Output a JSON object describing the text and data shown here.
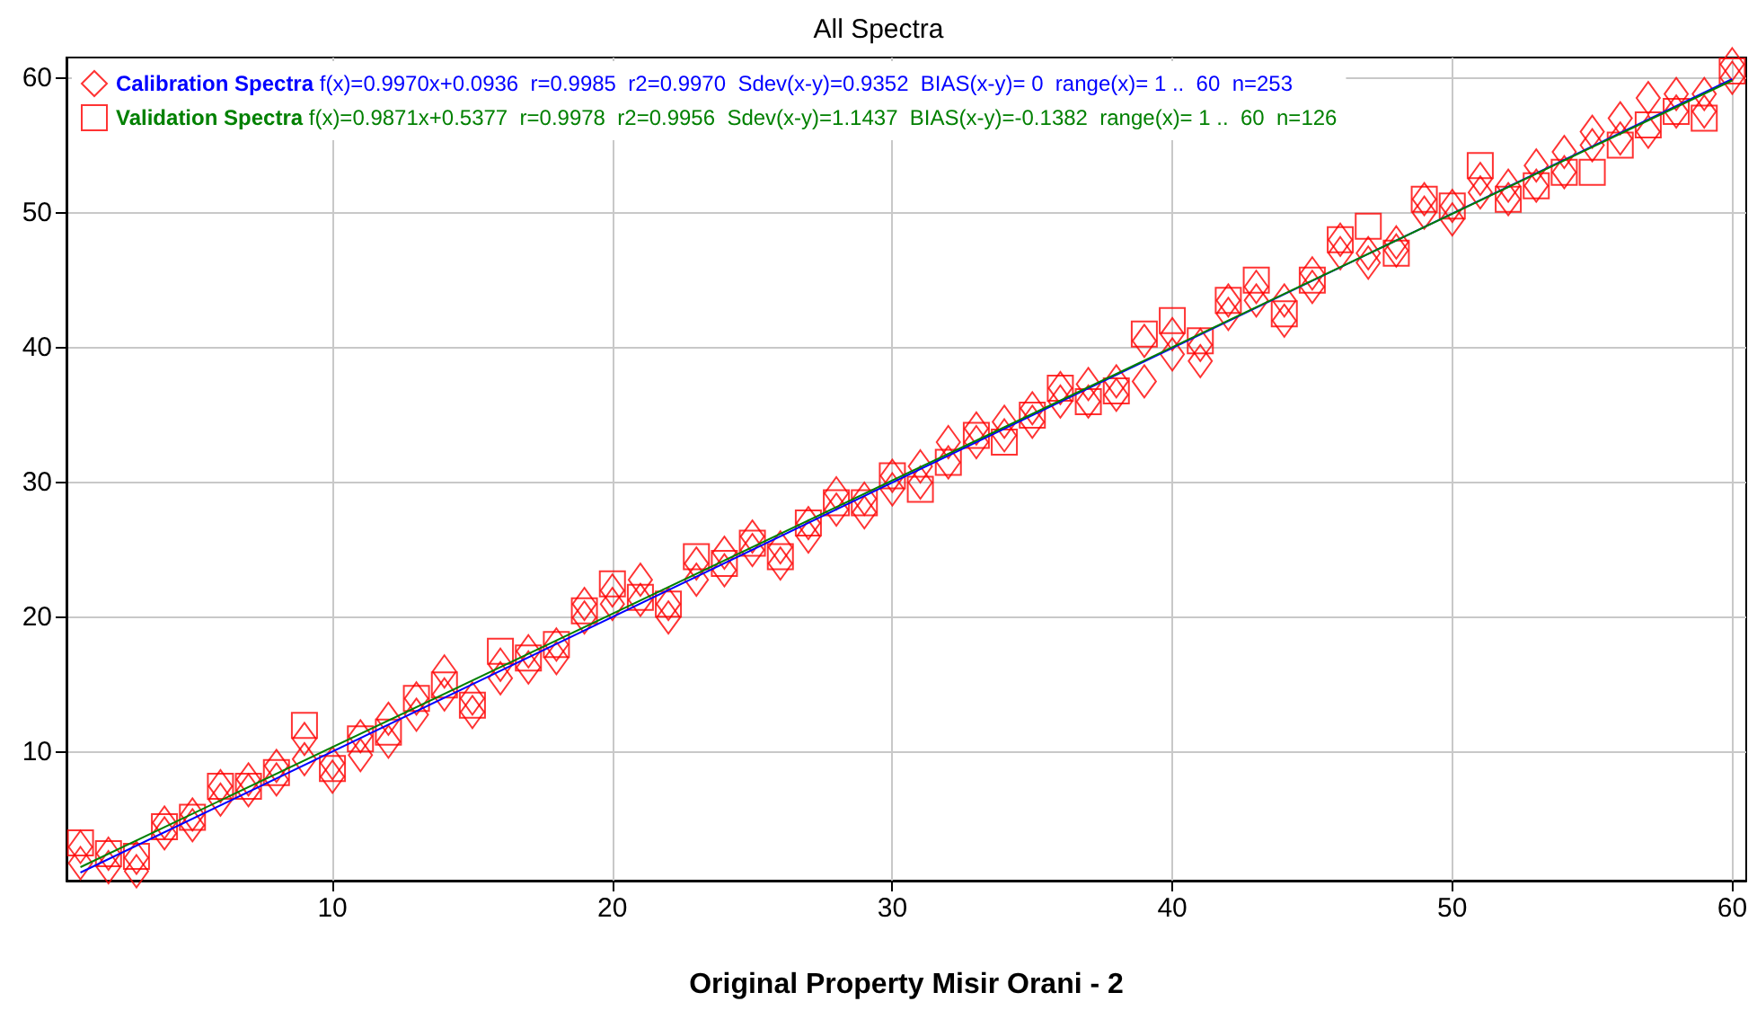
{
  "chart_data": {
    "type": "scatter",
    "title": "All Spectra",
    "xlabel": "Original Property Misir Orani - 2",
    "annotations": [
      "f(x)=0.9970x+0.0936  r=0.9985  r2=0.9970  Sdev(x-y)=0.9352  BIAS(x-y)= 0  range(x)= 1 ..  60  n=253",
      "f(x)=0.9871x+0.5377  r=0.9978  r2=0.9956  Sdev(x-y)=1.1437  BIAS(x-y)=-0.1382  range(x)= 1 ..  60  n=126"
    ],
    "xlim": [
      0.5,
      60.5
    ],
    "ylim": [
      0.5,
      61.5
    ],
    "xticks": [
      10,
      20,
      30,
      40,
      50,
      60
    ],
    "yticks": [
      10,
      20,
      30,
      40,
      50,
      60
    ],
    "grid": true,
    "legend": "top left",
    "series": [
      {
        "name": "Calibration Spectra",
        "marker": "diamond",
        "color": "#ff0000",
        "x": [
          1,
          2,
          3,
          4,
          5,
          6,
          7,
          8,
          9,
          10,
          11,
          12,
          13,
          14,
          15,
          16,
          17,
          18,
          19,
          20,
          21,
          22,
          23,
          24,
          25,
          26,
          27,
          28,
          29,
          30,
          31,
          32,
          33,
          34,
          35,
          36,
          37,
          38,
          39,
          40,
          41,
          42,
          43,
          44,
          45,
          46,
          47,
          48,
          49,
          50,
          51,
          52,
          53,
          54,
          55,
          56,
          57,
          58,
          59,
          60,
          1,
          2,
          3,
          4,
          5,
          6,
          7,
          8,
          9,
          10,
          11,
          12,
          13,
          14,
          15,
          16,
          17,
          18,
          19,
          20,
          21,
          22,
          23,
          24,
          25,
          26,
          27,
          28,
          29,
          30,
          31,
          32,
          33,
          34,
          35,
          36,
          37,
          38,
          39,
          40,
          41,
          42,
          43,
          44,
          45,
          46,
          47,
          48,
          49,
          50,
          51,
          52,
          53,
          54,
          55,
          56,
          57,
          58,
          59,
          60
        ],
        "values": [
          1.8,
          1.5,
          1.2,
          4.0,
          4.6,
          6.5,
          7.2,
          8.0,
          9.5,
          8.2,
          9.8,
          10.8,
          12.8,
          14.3,
          13.0,
          15.5,
          16.3,
          17.0,
          20.0,
          21.0,
          21.3,
          20.0,
          22.8,
          23.5,
          25.0,
          24.0,
          26.0,
          28.0,
          27.8,
          29.5,
          30.0,
          31.5,
          33.0,
          33.5,
          34.5,
          36.0,
          36.0,
          36.5,
          37.5,
          39.5,
          39.0,
          42.5,
          43.5,
          42.0,
          44.5,
          47.0,
          46.3,
          47.2,
          50.0,
          49.5,
          51.5,
          51.0,
          52.0,
          53.0,
          55.0,
          55.5,
          56.0,
          57.5,
          57.5,
          60.0,
          3.0,
          2.5,
          2.2,
          4.8,
          5.4,
          7.5,
          8.0,
          9.0,
          11.0,
          9.2,
          11.2,
          12.5,
          14.0,
          16.0,
          14.0,
          16.5,
          17.5,
          18.0,
          21.0,
          22.0,
          22.8,
          21.0,
          24.0,
          24.8,
          26.0,
          25.2,
          27.0,
          29.2,
          28.8,
          30.5,
          31.2,
          33.0,
          34.0,
          34.5,
          35.5,
          37.0,
          37.3,
          37.5,
          40.5,
          41.0,
          40.2,
          43.5,
          44.5,
          43.5,
          45.5,
          48.0,
          47.0,
          47.8,
          51.0,
          50.5,
          52.5,
          52.0,
          53.5,
          54.5,
          56.0,
          57.0,
          58.5,
          58.8,
          58.8,
          61.0
        ]
      },
      {
        "name": "Validation Spectra",
        "marker": "square",
        "color": "#ff0000",
        "x": [
          1,
          2,
          3,
          4,
          5,
          6,
          7,
          8,
          9,
          10,
          11,
          12,
          13,
          14,
          15,
          16,
          17,
          18,
          19,
          20,
          21,
          22,
          23,
          24,
          25,
          26,
          27,
          28,
          29,
          30,
          31,
          32,
          33,
          34,
          35,
          36,
          37,
          38,
          39,
          40,
          41,
          42,
          43,
          44,
          45,
          46,
          47,
          48,
          49,
          50,
          51,
          52,
          53,
          54,
          55,
          56,
          57,
          58,
          59,
          60
        ],
        "values": [
          3.3,
          2.5,
          2.3,
          4.5,
          5.2,
          7.5,
          7.5,
          8.5,
          12.0,
          8.8,
          11.0,
          11.5,
          14.0,
          15.0,
          13.5,
          17.5,
          17.0,
          18.0,
          20.5,
          22.5,
          21.5,
          21.0,
          24.5,
          24.0,
          25.5,
          24.5,
          27.0,
          28.5,
          28.5,
          30.5,
          29.5,
          31.5,
          33.5,
          33.0,
          35.0,
          37.0,
          36.0,
          36.8,
          41.0,
          42.0,
          40.5,
          43.5,
          45.0,
          42.5,
          45.0,
          48.0,
          49.0,
          47.0,
          51.0,
          50.5,
          53.5,
          51.0,
          52.0,
          53.0,
          53.0,
          55.0,
          56.5,
          57.5,
          57.0,
          60.5
        ]
      },
      {
        "type": "line",
        "marker": "none",
        "color": "#0000ff",
        "x": [
          1,
          60
        ],
        "values": [
          1.1,
          59.9
        ]
      },
      {
        "type": "line",
        "marker": "none",
        "color": "#008000",
        "x": [
          1,
          60
        ],
        "values": [
          1.5,
          59.8
        ]
      }
    ]
  }
}
